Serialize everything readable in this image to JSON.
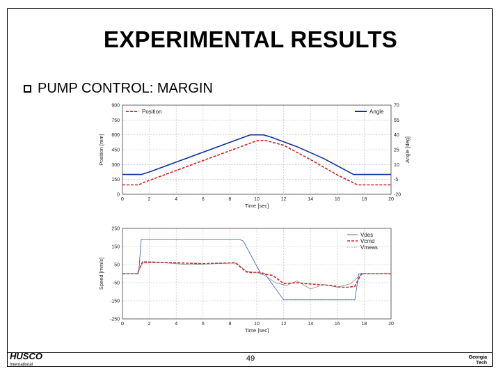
{
  "slide": {
    "title": "EXPERIMENTAL RESULTS",
    "subtitle": "PUMP CONTROL: MARGIN",
    "page_number": "49",
    "logo_left": "HUSCO",
    "logo_left_sub": "International",
    "logo_right_line1": "Georgia",
    "logo_right_line2": "Tech",
    "bullet_icon": "checkbox-bullet-icon"
  },
  "chart_data": [
    {
      "type": "line",
      "title": "",
      "xlabel": "Time [sec]",
      "ylabel": "Position [mm]",
      "y2label": "Angle [deg]",
      "xlim": [
        0,
        20
      ],
      "ylim": [
        0,
        900
      ],
      "y2lim": [
        -20,
        70
      ],
      "xticks": [
        "0",
        "2",
        "4",
        "6",
        "8",
        "10",
        "12",
        "14",
        "16",
        "18",
        "20"
      ],
      "yticks": [
        "0",
        "150",
        "300",
        "450",
        "600",
        "750",
        "900"
      ],
      "y2ticks": [
        "-20",
        "-5",
        "10",
        "25",
        "40",
        "55",
        "70"
      ],
      "grid": true,
      "legend": [
        {
          "name": "Position",
          "placement": "top-left",
          "color": "#d42020",
          "style": "dashed"
        },
        {
          "name": "Angle",
          "placement": "top-right",
          "color": "#1030a0",
          "style": "solid"
        }
      ],
      "series": [
        {
          "name": "Position",
          "axis": "left",
          "color": "#d42020",
          "dash": true,
          "x": [
            0,
            1.2,
            1.6,
            10,
            10.6,
            12,
            14,
            16,
            17.5,
            20
          ],
          "y": [
            95,
            95,
            120,
            540,
            545,
            495,
            350,
            195,
            95,
            95
          ]
        },
        {
          "name": "Angle",
          "axis": "right",
          "color": "#1030a0",
          "dash": false,
          "x": [
            0,
            1.4,
            2,
            9.5,
            10.5,
            11,
            13,
            15,
            17.2,
            20
          ],
          "y": [
            0,
            0,
            2.5,
            40,
            40,
            38,
            28,
            16,
            0,
            0
          ]
        }
      ]
    },
    {
      "type": "line",
      "title": "",
      "xlabel": "Time [sec]",
      "ylabel": "Speed [mm/s]",
      "xlim": [
        0,
        20
      ],
      "ylim": [
        -250,
        250
      ],
      "xticks": [
        "0",
        "2",
        "4",
        "6",
        "8",
        "10",
        "12",
        "14",
        "16",
        "18",
        "20"
      ],
      "yticks": [
        "-250",
        "-150",
        "-50",
        "50",
        "150",
        "250"
      ],
      "grid": true,
      "legend": [
        {
          "name": "Vdes",
          "placement": "top-right",
          "color": "#3050c0",
          "style": "solid"
        },
        {
          "name": "Vcmd",
          "placement": "top-right",
          "color": "#d42020",
          "style": "dashed"
        },
        {
          "name": "Vmeas",
          "placement": "top-right",
          "color": "#888888",
          "style": "dotted"
        }
      ],
      "series": [
        {
          "name": "Vdes",
          "color": "#3050c0",
          "dash": false,
          "width": 0.8,
          "x": [
            0,
            1.2,
            1.4,
            8.7,
            9.0,
            10.3,
            10.6,
            12.0,
            12.3,
            17.3,
            17.6,
            20
          ],
          "y": [
            0,
            0,
            190,
            190,
            180,
            0,
            0,
            -145,
            -145,
            -145,
            0,
            0
          ]
        },
        {
          "name": "Vcmd",
          "color": "#d42020",
          "dash": true,
          "width": 1.6,
          "x": [
            0,
            1.1,
            1.5,
            4,
            6,
            8.4,
            9.2,
            9.6,
            10.2,
            10.8,
            11.2,
            12,
            13,
            13.6,
            14.5,
            15.5,
            16.2,
            16.8,
            17.3,
            17.8,
            20
          ],
          "y": [
            0,
            0,
            65,
            60,
            55,
            60,
            10,
            5,
            8,
            -5,
            -10,
            -55,
            -50,
            -55,
            -60,
            -65,
            -75,
            -75,
            -70,
            0,
            0
          ]
        },
        {
          "name": "Vmeas",
          "color": "#777777",
          "dash": false,
          "width": 0.7,
          "x": [
            0,
            1.1,
            1.5,
            3,
            5,
            7,
            8.5,
            9.2,
            10.0,
            10.6,
            11.4,
            12.2,
            13.0,
            14.0,
            15.0,
            16.0,
            17.0,
            17.6,
            18.0,
            20
          ],
          "y": [
            0,
            0,
            58,
            60,
            50,
            55,
            58,
            15,
            5,
            -10,
            -50,
            -65,
            -40,
            -85,
            -60,
            -75,
            -55,
            -15,
            0,
            0
          ]
        }
      ]
    }
  ]
}
